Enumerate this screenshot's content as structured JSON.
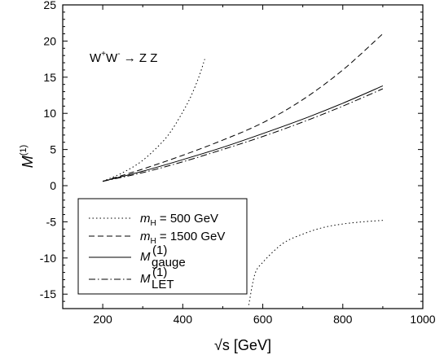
{
  "chart_data": {
    "type": "line",
    "annotation": {
      "process": "W",
      "sup1": "+",
      "w2": "W",
      "sup2": "-",
      "arrow": "→",
      "products": "Z Z"
    },
    "xlabel": {
      "main": "√s [GeV]"
    },
    "ylabel": {
      "main": "M",
      "sup": "(1)"
    },
    "xlim": [
      100,
      1000
    ],
    "ylim": [
      -17,
      25
    ],
    "xticks": [
      200,
      400,
      600,
      800,
      1000
    ],
    "yticks": [
      -15,
      -10,
      -5,
      0,
      5,
      10,
      15,
      20,
      25
    ],
    "xtick_labels": [
      "200",
      "400",
      "600",
      "800",
      "1000"
    ],
    "ytick_labels": [
      "-15",
      "-10",
      "-5",
      "0",
      "5",
      "10",
      "15",
      "20",
      "25"
    ],
    "grid": false,
    "legend_position": "bottom-left",
    "series": [
      {
        "legend": {
          "main": "m",
          "sub": "H",
          "suffix": " = 500 GeV"
        },
        "dash": "1.5,3",
        "segments": [
          {
            "x": [
              200,
              250,
              300,
              350,
              375,
              400,
              420,
              440,
              455
            ],
            "y": [
              0.6,
              1.8,
              3.5,
              6.1,
              7.9,
              10.2,
              12.3,
              15.0,
              17.5
            ]
          },
          {
            "x": [
              565,
              580,
              600,
              650,
              700,
              750,
              800,
              850,
              900
            ],
            "y": [
              -16.5,
              -12.3,
              -10.6,
              -8.0,
              -6.7,
              -5.8,
              -5.3,
              -5.0,
              -4.8
            ]
          }
        ]
      },
      {
        "legend": {
          "main": "m",
          "sub": "H",
          "suffix": " = 1500 GeV"
        },
        "dash": "7,4",
        "segments": [
          {
            "x": [
              200,
              300,
              400,
              500,
              600,
              700,
              800,
              900
            ],
            "y": [
              0.6,
              2.3,
              4.2,
              6.3,
              8.7,
              11.9,
              16.0,
              21.0
            ]
          }
        ]
      },
      {
        "legend": {
          "main": "M",
          "sub": "gauge",
          "sup": "(1)"
        },
        "dash": "",
        "segments": [
          {
            "x": [
              200,
              300,
              400,
              500,
              600,
              700,
              800,
              900
            ],
            "y": [
              0.6,
              2.0,
              3.6,
              5.3,
              7.2,
              9.2,
              11.4,
              13.8
            ]
          }
        ]
      },
      {
        "legend": {
          "main": "M",
          "sub": "LET",
          "sup": "(1)"
        },
        "dash": "8,3,1.5,3",
        "segments": [
          {
            "x": [
              200,
              300,
              400,
              500,
              600,
              700,
              800,
              900
            ],
            "y": [
              0.6,
              1.8,
              3.3,
              5.0,
              6.8,
              8.8,
              11.0,
              13.4
            ]
          }
        ]
      }
    ]
  }
}
